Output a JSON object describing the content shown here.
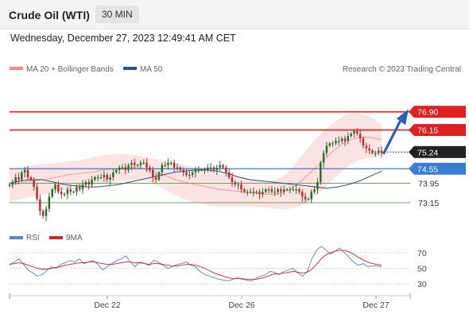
{
  "header": {
    "instrument": "Crude Oil (WTI)",
    "timeframe": "30 MIN"
  },
  "datetime": "Wednesday, December 27, 2023 12:49:41 AM CET",
  "copyright": "Research © 2023 Trading Central",
  "colors": {
    "bollinger": "#f08a8a",
    "ma50": "#2f4f8f",
    "resistance": "#e02020",
    "current": "#222222",
    "pivot": "#3a7bd5",
    "support": "#5a9a4a",
    "arrow": "#2a60b0",
    "rsi": "#5b7fd8",
    "rsi_ma": "#e02020",
    "candle_up": "#2e6b2e",
    "candle_down": "#b03030"
  },
  "chart_data": [
    {
      "type": "candlestick",
      "legend": [
        "MA 20 + Bollinger Bands",
        "MA 50"
      ],
      "x_ticks": [
        "Dec 22",
        "Dec 26",
        "Dec 27"
      ],
      "y_range": [
        72.0,
        78.3
      ],
      "levels": [
        {
          "value": 76.9,
          "label": "76.90",
          "kind": "resistance"
        },
        {
          "value": 76.15,
          "label": "76.15",
          "kind": "resistance"
        },
        {
          "value": 75.24,
          "label": "75.24",
          "kind": "current"
        },
        {
          "value": 74.55,
          "label": "74.55",
          "kind": "pivot"
        },
        {
          "value": 73.95,
          "label": "73.95",
          "kind": "support"
        },
        {
          "value": 73.15,
          "label": "73.15",
          "kind": "support"
        }
      ],
      "close_path": [
        73.9,
        74.0,
        74.2,
        74.1,
        74.4,
        74.5,
        74.2,
        74.1,
        73.8,
        73.3,
        72.8,
        72.6,
        72.9,
        73.4,
        73.7,
        73.9,
        73.6,
        73.5,
        73.5,
        73.7,
        73.6,
        73.6,
        73.8,
        73.7,
        73.9,
        74.0,
        73.9,
        74.1,
        74.2,
        74.2,
        74.2,
        74.3,
        74.1,
        74.2,
        74.4,
        74.5,
        74.6,
        74.6,
        74.5,
        74.7,
        74.8,
        74.7,
        74.7,
        74.8,
        74.8,
        74.6,
        74.5,
        74.2,
        74.1,
        74.4,
        74.7,
        74.7,
        74.8,
        74.8,
        74.6,
        74.6,
        74.5,
        74.4,
        74.3,
        74.3,
        74.4,
        74.5,
        74.5,
        74.5,
        74.5,
        74.6,
        74.6,
        74.5,
        74.6,
        74.7,
        74.6,
        74.4,
        74.2,
        74.0,
        73.9,
        73.9,
        73.7,
        73.6,
        73.6,
        73.6,
        73.6,
        73.6,
        73.5,
        73.6,
        73.7,
        73.7,
        73.6,
        73.6,
        73.7,
        73.6,
        73.7,
        73.7,
        73.7,
        73.7,
        73.7,
        73.6,
        73.4,
        73.3,
        73.3,
        73.6,
        73.7,
        74.0,
        74.8,
        75.2,
        75.5,
        75.6,
        75.6,
        75.7,
        75.7,
        75.8,
        75.7,
        75.9,
        76.0,
        76.1,
        76.0,
        75.8,
        75.5,
        75.4,
        75.3,
        75.2,
        75.2,
        75.3,
        75.2
      ],
      "ma50_path": [
        73.95,
        74.05,
        74.1,
        74.1,
        74.0,
        73.9,
        73.85,
        73.8,
        73.8,
        73.85,
        73.9,
        74.0,
        74.1,
        74.2,
        74.3,
        74.4,
        74.45,
        74.5,
        74.5,
        74.45,
        74.35,
        74.2,
        74.1,
        74.05,
        74.0,
        73.95,
        73.9,
        73.85,
        73.8,
        73.75,
        73.8,
        73.9,
        74.05,
        74.25,
        74.45
      ],
      "bb_upper_path": [
        74.5,
        74.6,
        74.7,
        74.75,
        74.8,
        74.85,
        74.9,
        75.0,
        75.1,
        75.15,
        75.15,
        75.1,
        75.0,
        74.9,
        74.8,
        74.7,
        74.6,
        74.5,
        74.4,
        74.3,
        74.2,
        74.1,
        74.0,
        74.1,
        74.4,
        75.0,
        75.6,
        76.1,
        76.5,
        76.8,
        76.85,
        76.7,
        76.4
      ],
      "bb_lower_path": [
        73.2,
        73.3,
        73.4,
        73.5,
        73.6,
        73.7,
        73.8,
        73.85,
        73.9,
        74.0,
        74.05,
        74.1,
        74.0,
        73.8,
        73.5,
        73.3,
        73.15,
        73.05,
        73.0,
        73.0,
        73.0,
        73.0,
        72.95,
        72.9,
        72.9,
        73.0,
        73.3,
        73.7,
        74.2,
        74.6,
        74.9,
        75.0,
        75.1
      ],
      "bb_mid_path": [
        73.85,
        73.95,
        74.05,
        74.1,
        74.2,
        74.3,
        74.35,
        74.4,
        74.5,
        74.55,
        74.6,
        74.6,
        74.5,
        74.35,
        74.15,
        74.0,
        73.9,
        73.8,
        73.7,
        73.65,
        73.6,
        73.55,
        73.5,
        73.5,
        73.65,
        74.0,
        74.45,
        74.9,
        75.35,
        75.7,
        75.85,
        75.85,
        75.75
      ]
    },
    {
      "type": "line",
      "legend": [
        "RSI",
        "9MA"
      ],
      "y_ticks": [
        70,
        50,
        30
      ],
      "y_range": [
        18,
        80
      ],
      "rsi": [
        55,
        58,
        62,
        55,
        48,
        44,
        40,
        42,
        47,
        52,
        50,
        55,
        57,
        60,
        58,
        62,
        56,
        58,
        60,
        55,
        48,
        52,
        56,
        60,
        62,
        66,
        58,
        52,
        58,
        56,
        54,
        60,
        58,
        54,
        50,
        52,
        55,
        56,
        58,
        54,
        52,
        46,
        42,
        40,
        38,
        36,
        35,
        34,
        36,
        38,
        36,
        35,
        34,
        37,
        40,
        42,
        46,
        45,
        42,
        46,
        48,
        50,
        44,
        40,
        46,
        62,
        73,
        78,
        74,
        68,
        72,
        76,
        70,
        64,
        58,
        54,
        56,
        52,
        53,
        53,
        52
      ],
      "rsi_ma": [
        55,
        56,
        57,
        56,
        54,
        52,
        50,
        49,
        49,
        50,
        51,
        52,
        54,
        55,
        56,
        57,
        57,
        58,
        58,
        57,
        56,
        55,
        55,
        56,
        57,
        58,
        58,
        57,
        57,
        56,
        55,
        56,
        56,
        55,
        54,
        53,
        53,
        54,
        55,
        55,
        54,
        52,
        50,
        47,
        44,
        42,
        40,
        38,
        37,
        37,
        37,
        36,
        36,
        36,
        37,
        39,
        41,
        43,
        43,
        44,
        45,
        46,
        45,
        44,
        45,
        49,
        55,
        62,
        67,
        70,
        72,
        73,
        73,
        71,
        68,
        64,
        61,
        58,
        56,
        55,
        54
      ]
    }
  ]
}
